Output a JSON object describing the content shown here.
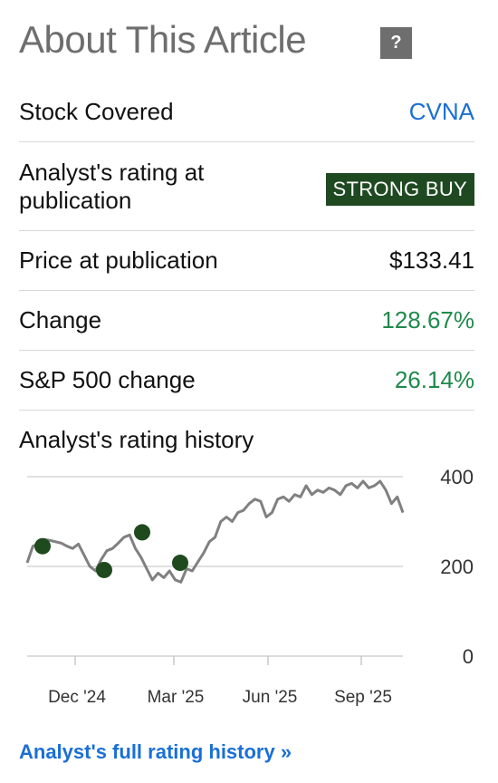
{
  "header": {
    "title": "About This Article",
    "help_label": "?"
  },
  "rows": {
    "stock": {
      "label": "Stock Covered",
      "value": "CVNA"
    },
    "rating": {
      "label": "Analyst's rating at publication",
      "value": "STRONG BUY"
    },
    "price": {
      "label": "Price at publication",
      "value": "$133.41"
    },
    "change": {
      "label": "Change",
      "value": "128.67%"
    },
    "sp500": {
      "label": "S&P 500 change",
      "value": "26.14%"
    }
  },
  "history": {
    "title": "Analyst's rating history"
  },
  "footer": {
    "link_label": "Analyst's full rating history »"
  },
  "colors": {
    "positive": "#1f8a4c",
    "link": "#1a6fd6",
    "badge_bg": "#1f4a21",
    "marker": "#1e4a1e",
    "line": "#808080"
  },
  "chart_data": {
    "type": "line",
    "x_tick_labels": [
      "Dec '24",
      "Mar '25",
      "Jun '25",
      "Sep '25"
    ],
    "y_tick_labels": [
      "400",
      "200",
      "0"
    ],
    "ylim": [
      0,
      400
    ],
    "grid": true,
    "series": [
      {
        "values": [
          208,
          245,
          250,
          260,
          258,
          255,
          252,
          245,
          240,
          250,
          225,
          200,
          190,
          215,
          235,
          240,
          252,
          265,
          270,
          240,
          220,
          195,
          170,
          185,
          175,
          190,
          170,
          165,
          195,
          190,
          210,
          230,
          255,
          265,
          300,
          310,
          300,
          320,
          325,
          340,
          350,
          345,
          310,
          320,
          350,
          355,
          345,
          360,
          355,
          380,
          360,
          370,
          365,
          375,
          370,
          360,
          380,
          385,
          375,
          390,
          375,
          380,
          390,
          370,
          340,
          355,
          320
        ]
      }
    ],
    "markers": [
      245,
      192,
      276,
      208
    ]
  }
}
